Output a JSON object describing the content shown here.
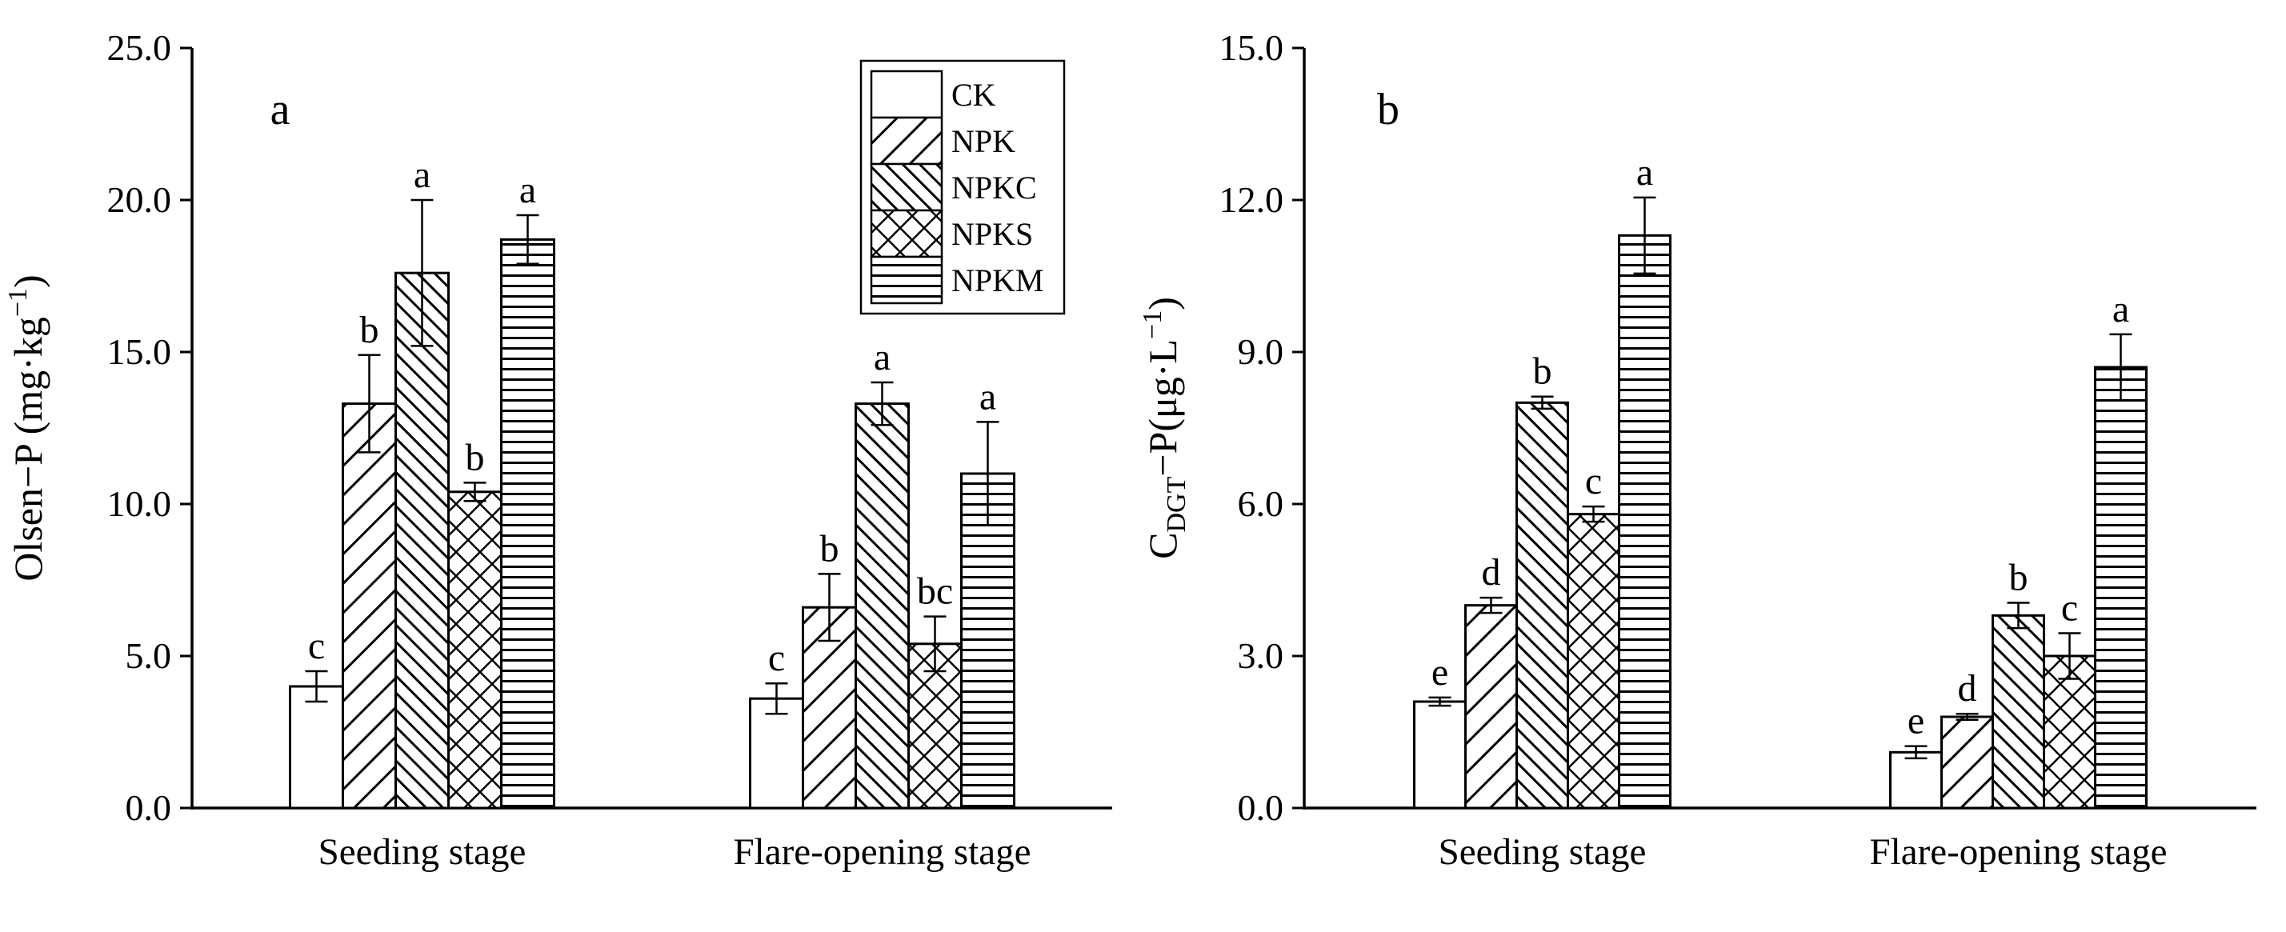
{
  "colors": {
    "stroke": "#000000",
    "background": "#ffffff"
  },
  "chart_data": [
    {
      "type": "bar",
      "panel_label": "a",
      "ylabel": "Olsen−P (mg·kg−1)",
      "ylabel_segments": [
        {
          "t": "Olsen−P (mg·kg"
        },
        {
          "t": "−1",
          "pos": "super"
        },
        {
          "t": ")"
        }
      ],
      "ylim": [
        0,
        25
      ],
      "yticks": [
        0,
        5,
        10,
        15,
        20,
        25
      ],
      "ytick_labels": [
        "0.0",
        "5.0",
        "10.0",
        "15.0",
        "20.0",
        "25.0"
      ],
      "categories": [
        "Seeding stage",
        "Flare-opening stage"
      ],
      "grid": false,
      "legend": {
        "show": true,
        "position": "top-right-of-panel",
        "items": [
          "CK",
          "NPK",
          "NPKC",
          "NPKS",
          "NPKM"
        ]
      },
      "series": [
        {
          "name": "CK",
          "pattern": "plain",
          "values": [
            4.0,
            3.6
          ],
          "errors": [
            0.5,
            0.5
          ],
          "letters": [
            "c",
            "c"
          ]
        },
        {
          "name": "NPK",
          "pattern": "diag-up",
          "values": [
            13.3,
            6.6
          ],
          "errors": [
            1.6,
            1.1
          ],
          "letters": [
            "b",
            "b"
          ]
        },
        {
          "name": "NPKC",
          "pattern": "diag-down",
          "values": [
            17.6,
            13.3
          ],
          "errors": [
            2.4,
            0.7
          ],
          "letters": [
            "a",
            "a"
          ]
        },
        {
          "name": "NPKS",
          "pattern": "cross",
          "values": [
            10.4,
            5.4
          ],
          "errors": [
            0.3,
            0.9
          ],
          "letters": [
            "b",
            "bc"
          ]
        },
        {
          "name": "NPKM",
          "pattern": "horiz",
          "values": [
            18.7,
            11.0
          ],
          "errors": [
            0.8,
            1.7
          ],
          "letters": [
            "a",
            "a"
          ]
        }
      ]
    },
    {
      "type": "bar",
      "panel_label": "b",
      "ylabel": "CDGT−P(μg·L−1)",
      "ylabel_segments": [
        {
          "t": "C"
        },
        {
          "t": "DGT",
          "pos": "sub"
        },
        {
          "t": "−P(μg·L"
        },
        {
          "t": "−1",
          "pos": "super"
        },
        {
          "t": ")"
        }
      ],
      "ylim": [
        0,
        15
      ],
      "yticks": [
        0,
        3,
        6,
        9,
        12,
        15
      ],
      "ytick_labels": [
        "0.0",
        "3.0",
        "6.0",
        "9.0",
        "12.0",
        "15.0"
      ],
      "categories": [
        "Seeding stage",
        "Flare-opening stage"
      ],
      "grid": false,
      "legend": {
        "show": false,
        "items": []
      },
      "series": [
        {
          "name": "CK",
          "pattern": "plain",
          "values": [
            2.1,
            1.1
          ],
          "errors": [
            0.08,
            0.12
          ],
          "letters": [
            "e",
            "e"
          ]
        },
        {
          "name": "NPK",
          "pattern": "diag-up",
          "values": [
            4.0,
            1.8
          ],
          "errors": [
            0.15,
            0.06
          ],
          "letters": [
            "d",
            "d"
          ]
        },
        {
          "name": "NPKC",
          "pattern": "diag-down",
          "values": [
            8.0,
            3.8
          ],
          "errors": [
            0.12,
            0.25
          ],
          "letters": [
            "b",
            "b"
          ]
        },
        {
          "name": "NPKS",
          "pattern": "cross",
          "values": [
            5.8,
            3.0
          ],
          "errors": [
            0.15,
            0.45
          ],
          "letters": [
            "c",
            "c"
          ]
        },
        {
          "name": "NPKM",
          "pattern": "horiz",
          "values": [
            11.3,
            8.7
          ],
          "errors": [
            0.75,
            0.65
          ],
          "letters": [
            "a",
            "a"
          ]
        }
      ]
    }
  ]
}
